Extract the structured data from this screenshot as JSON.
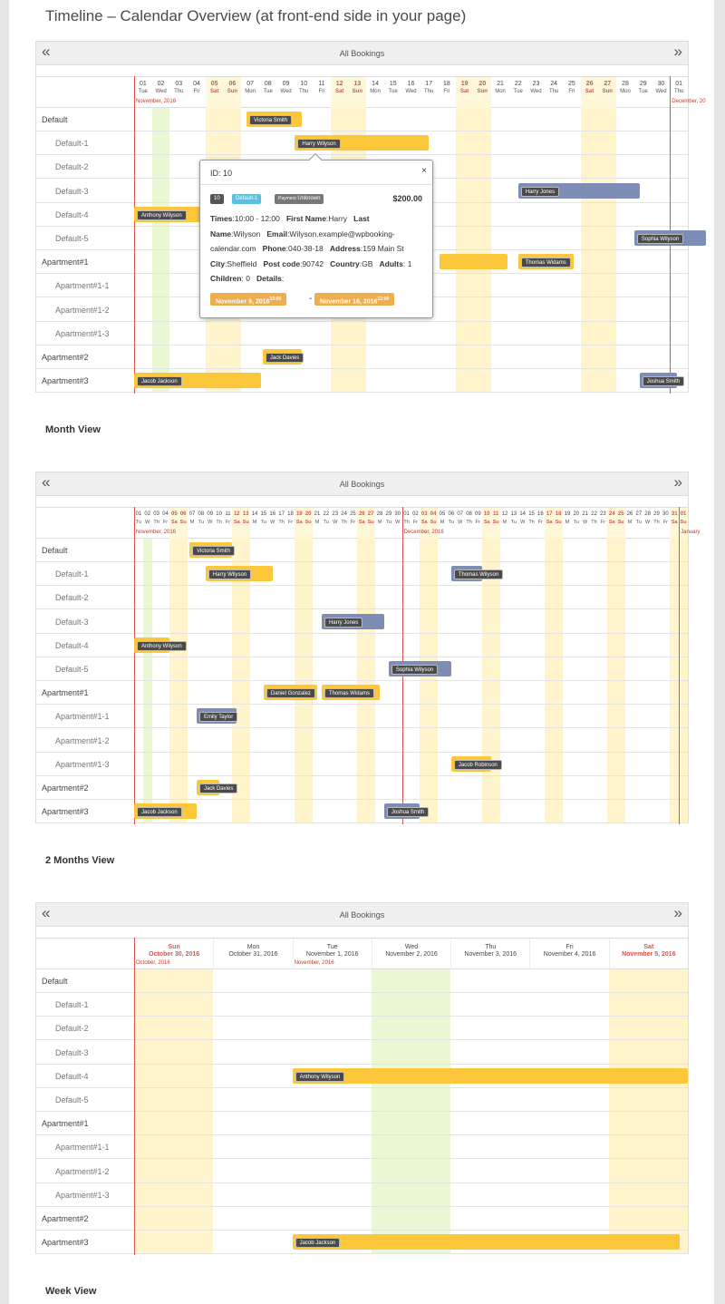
{
  "heading": "Timeline – Calendar Overview (at front-end side in your page)",
  "view_titles": {
    "month": "Month View",
    "two_months": "2 Months View",
    "week": "Week View"
  },
  "nav": {
    "prev": "«",
    "next": "»",
    "title": "All Bookings"
  },
  "rows": [
    {
      "label": "Default",
      "type": "resource"
    },
    {
      "label": "Default-1",
      "type": "sub"
    },
    {
      "label": "Default-2",
      "type": "sub"
    },
    {
      "label": "Default-3",
      "type": "sub"
    },
    {
      "label": "Default-4",
      "type": "sub"
    },
    {
      "label": "Default-5",
      "type": "sub"
    },
    {
      "label": "Apartment#1",
      "type": "resource"
    },
    {
      "label": "Apartment#1-1",
      "type": "sub"
    },
    {
      "label": "Apartment#1-2",
      "type": "sub"
    },
    {
      "label": "Apartment#1-3",
      "type": "sub"
    },
    {
      "label": "Apartment#2",
      "type": "resource"
    },
    {
      "label": "Apartment#3",
      "type": "resource"
    }
  ],
  "timeline1": {
    "month_labels": [
      "November, 2016",
      "December, 20"
    ],
    "days": [
      {
        "n": "01",
        "d": "Tue"
      },
      {
        "n": "02",
        "d": "Wed"
      },
      {
        "n": "03",
        "d": "Thu"
      },
      {
        "n": "04",
        "d": "Fri"
      },
      {
        "n": "05",
        "d": "Sat"
      },
      {
        "n": "06",
        "d": "Sun"
      },
      {
        "n": "07",
        "d": "Mon"
      },
      {
        "n": "08",
        "d": "Tue"
      },
      {
        "n": "09",
        "d": "Wed"
      },
      {
        "n": "10",
        "d": "Thu"
      },
      {
        "n": "11",
        "d": "Fri"
      },
      {
        "n": "12",
        "d": "Sat"
      },
      {
        "n": "13",
        "d": "Sun"
      },
      {
        "n": "14",
        "d": "Mon"
      },
      {
        "n": "15",
        "d": "Tue"
      },
      {
        "n": "16",
        "d": "Wed"
      },
      {
        "n": "17",
        "d": "Thu"
      },
      {
        "n": "18",
        "d": "Fri"
      },
      {
        "n": "19",
        "d": "Sat"
      },
      {
        "n": "20",
        "d": "Sun"
      },
      {
        "n": "21",
        "d": "Mon"
      },
      {
        "n": "22",
        "d": "Tue"
      },
      {
        "n": "23",
        "d": "Wed"
      },
      {
        "n": "24",
        "d": "Thu"
      },
      {
        "n": "25",
        "d": "Fri"
      },
      {
        "n": "26",
        "d": "Sat"
      },
      {
        "n": "27",
        "d": "Sun"
      },
      {
        "n": "28",
        "d": "Mon"
      },
      {
        "n": "29",
        "d": "Tue"
      },
      {
        "n": "30",
        "d": "Wed"
      },
      {
        "n": "01",
        "d": "Thu"
      }
    ],
    "bookings": [
      {
        "name": "Victoria Smith",
        "row": 0,
        "start": 6.3,
        "end": 9.4,
        "color": "y"
      },
      {
        "name": "Harry Wilyson",
        "row": 1,
        "start": 9,
        "end": 16.5,
        "color": "y"
      },
      {
        "name": "Harry Jones",
        "row": 3,
        "start": 21.5,
        "end": 28.3,
        "color": "b"
      },
      {
        "name": "Anthony Wilyson",
        "row": 4,
        "start": 0,
        "end": 4,
        "color": "y"
      },
      {
        "name": "Sophia Wilyson",
        "row": 5,
        "start": 28,
        "end": 32,
        "color": "b"
      },
      {
        "name": "",
        "row": 6,
        "start": 17.1,
        "end": 20.9,
        "color": "y"
      },
      {
        "name": "Thomas Widams",
        "row": 6,
        "start": 21.5,
        "end": 24.6,
        "color": "y"
      },
      {
        "name": "Jack Davies",
        "row": 10,
        "start": 7.2,
        "end": 9.4,
        "color": "y"
      },
      {
        "name": "Jacob Jackson",
        "row": 11,
        "start": 0,
        "end": 7.1,
        "color": "y"
      },
      {
        "name": "Joshua Smith",
        "row": 11,
        "start": 28.3,
        "end": 30.4,
        "color": "b"
      }
    ],
    "popup": {
      "id_text": "ID: 10",
      "close": "×",
      "badge_num": "10",
      "badge_res": "Default-1",
      "badge_pay_label": "Payment",
      "badge_pay_value": "Unknown",
      "price": "$200.00",
      "times_label": "Times",
      "times": ":10:00 - 12:00",
      "fname_label": "First Name",
      "fname": ":Harry",
      "lname_label": "Last Name",
      "lname": ":Wilyson",
      "email_label": "Email",
      "email": ":Wilyson.example@wpbooking-calendar.com",
      "phone_label": "Phone",
      "phone": ":040-38-18",
      "address_label": "Address",
      "address": ":159 Main St",
      "city_label": "City",
      "city": ":Sheffield",
      "post_label": "Post code",
      "post": ":90742",
      "country_label": "Country",
      "country": ":GB",
      "adults_label": "Adults",
      "adults": ": 1",
      "children_label": "Children",
      "children": ": 0",
      "details_label": "Details",
      "details": ":",
      "date_from": "November 9, 2016",
      "time_from": "10:00",
      "dash": "-",
      "date_to": "November 16, 2016",
      "time_to": "12:00"
    }
  },
  "timeline2": {
    "month_labels": [
      "November, 2016",
      "December, 2016",
      "January"
    ],
    "day_nums": [
      "01",
      "02",
      "03",
      "04",
      "05",
      "06",
      "07",
      "08",
      "09",
      "10",
      "11",
      "12",
      "13",
      "14",
      "15",
      "16",
      "17",
      "18",
      "19",
      "20",
      "21",
      "22",
      "23",
      "24",
      "25",
      "26",
      "27",
      "28",
      "29",
      "30",
      "01",
      "02",
      "03",
      "04",
      "05",
      "06",
      "07",
      "08",
      "09",
      "10",
      "11",
      "12",
      "13",
      "14",
      "15",
      "16",
      "17",
      "18",
      "19",
      "20",
      "21",
      "22",
      "23",
      "24",
      "25",
      "26",
      "27",
      "28",
      "29",
      "30",
      "31",
      "01"
    ],
    "day_abbr": [
      "Tu",
      "W",
      "Th",
      "Fr",
      "Sa",
      "Su",
      "M",
      "Tu",
      "W",
      "Th",
      "Fr",
      "Sa",
      "Su",
      "M",
      "Tu",
      "W",
      "Th",
      "Fr",
      "Sa",
      "Su",
      "M",
      "Tu",
      "W",
      "Th",
      "Fr",
      "Sa",
      "Su",
      "M",
      "Tu",
      "W",
      "Th",
      "Fr",
      "Sa",
      "Su",
      "M",
      "Tu",
      "W",
      "Th",
      "Fr",
      "Sa",
      "Su",
      "M",
      "Tu",
      "W",
      "Th",
      "Fr",
      "Sa",
      "Su",
      "M",
      "Tu",
      "W",
      "Th",
      "Fr",
      "Sa",
      "Su",
      "M",
      "Tu",
      "W",
      "Th",
      "Fr",
      "Sa",
      "Su"
    ],
    "bookings": [
      {
        "name": "Victoria Smith",
        "row": 0,
        "start": 6.2,
        "end": 11,
        "color": "y"
      },
      {
        "name": "Harry Wilyson",
        "row": 1,
        "start": 8,
        "end": 15.5,
        "color": "y"
      },
      {
        "name": "Thomas Wilyson",
        "row": 1,
        "start": 35.5,
        "end": 39,
        "color": "b"
      },
      {
        "name": "Harry Jones",
        "row": 3,
        "start": 21,
        "end": 28,
        "color": "b"
      },
      {
        "name": "Anthony Wilyson",
        "row": 4,
        "start": 0,
        "end": 4,
        "color": "y"
      },
      {
        "name": "Sophia Wilyson",
        "row": 5,
        "start": 28.5,
        "end": 35.5,
        "color": "b"
      },
      {
        "name": "Daniel Gonzalez",
        "row": 6,
        "start": 14.5,
        "end": 20.5,
        "color": "y"
      },
      {
        "name": "Thomas Widams",
        "row": 6,
        "start": 21,
        "end": 27.5,
        "color": "y"
      },
      {
        "name": "Emily Taylor",
        "row": 7,
        "start": 7,
        "end": 11.5,
        "color": "b"
      },
      {
        "name": "Jacob Robinson",
        "row": 9,
        "start": 35.5,
        "end": 40,
        "color": "y"
      },
      {
        "name": "Jack Davies",
        "row": 10,
        "start": 7,
        "end": 9.5,
        "color": "y"
      },
      {
        "name": "Jacob Jackson",
        "row": 11,
        "start": 0,
        "end": 7,
        "color": "y"
      },
      {
        "name": "Joshua Smith",
        "row": 11,
        "start": 28,
        "end": 32,
        "color": "b"
      }
    ]
  },
  "timeline3": {
    "month_labels": [
      "October, 2016",
      "November, 2016"
    ],
    "days": [
      {
        "a": "Sun",
        "b": "October 30, 2016",
        "we": true
      },
      {
        "a": "Mon",
        "b": "October 31, 2016",
        "we": false
      },
      {
        "a": "Tue",
        "b": "November 1, 2016",
        "we": false
      },
      {
        "a": "Wed",
        "b": "November 2, 2016",
        "we": false
      },
      {
        "a": "Thu",
        "b": "November 3, 2016",
        "we": false
      },
      {
        "a": "Fri",
        "b": "November 4, 2016",
        "we": false
      },
      {
        "a": "Sat",
        "b": "November 5, 2016",
        "we": true
      }
    ],
    "bookings": [
      {
        "name": "Anthony Wilyson",
        "row": 4,
        "start": 2,
        "end": 7,
        "color": "y"
      },
      {
        "name": "Jacob Jackson",
        "row": 11,
        "start": 2,
        "end": 6.9,
        "color": "y"
      }
    ]
  }
}
